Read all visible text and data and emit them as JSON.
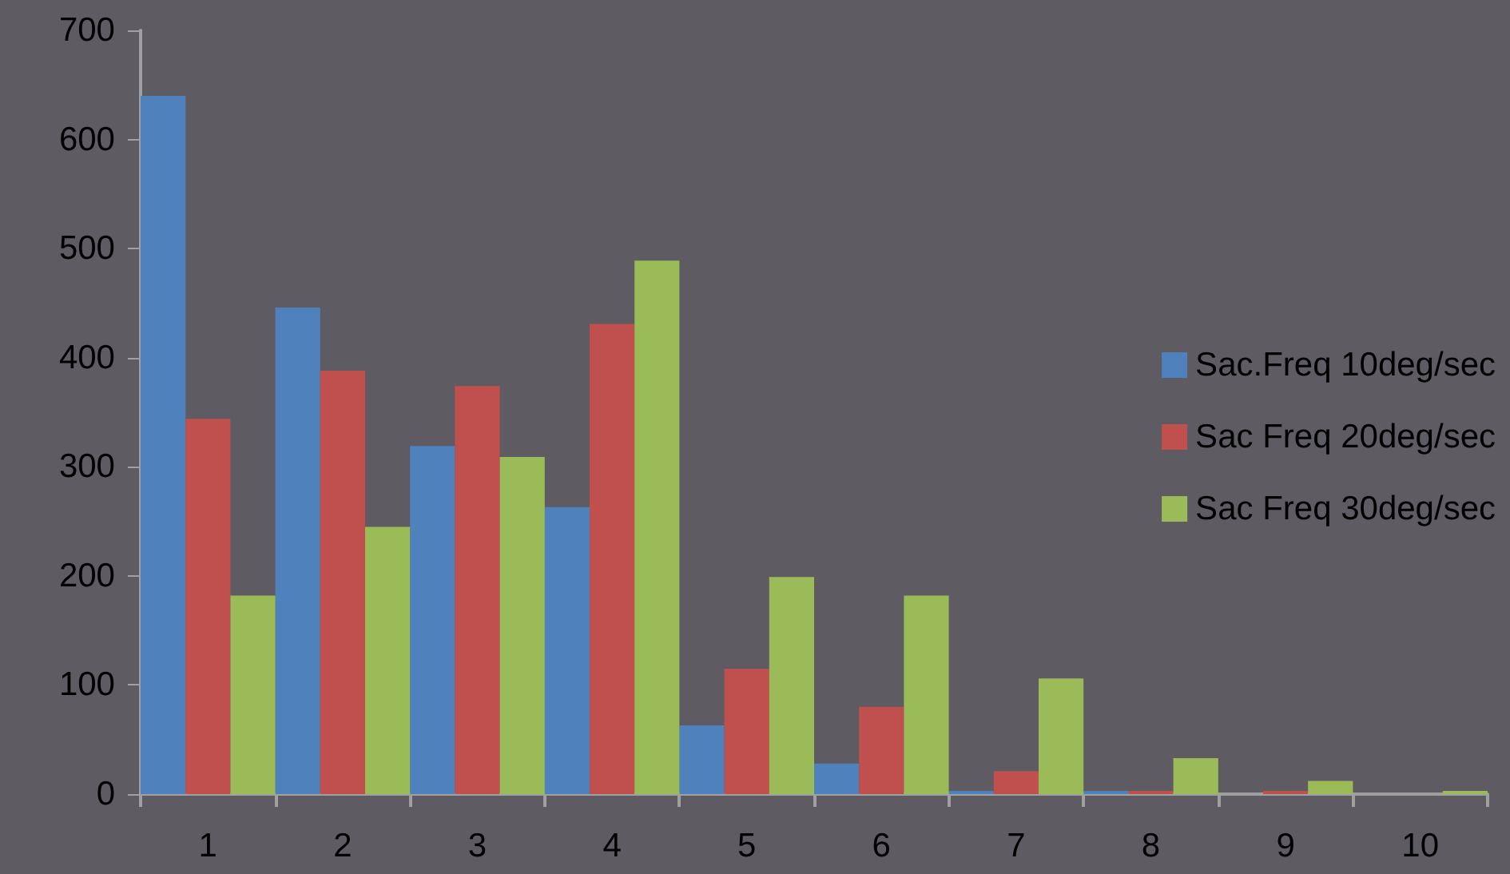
{
  "chart_data": {
    "type": "bar",
    "categories": [
      "1",
      "2",
      "3",
      "4",
      "5",
      "6",
      "7",
      "8",
      "9",
      "10"
    ],
    "series": [
      {
        "name": "Sac.Freq 10deg/sec",
        "color": "#4f81bd",
        "values": [
          640,
          446,
          319,
          263,
          63,
          28,
          3,
          3,
          0,
          0
        ]
      },
      {
        "name": "Sac Freq 20deg/sec",
        "color": "#c0504d",
        "values": [
          344,
          388,
          374,
          431,
          115,
          80,
          21,
          3,
          3,
          0
        ]
      },
      {
        "name": "Sac Freq 30deg/sec",
        "color": "#9bbb59",
        "values": [
          182,
          245,
          309,
          489,
          199,
          182,
          106,
          33,
          12,
          3
        ]
      }
    ],
    "ylim": [
      0,
      700
    ],
    "yticks": [
      0,
      100,
      200,
      300,
      400,
      500,
      600,
      700
    ],
    "grid": false,
    "legend": "right"
  }
}
